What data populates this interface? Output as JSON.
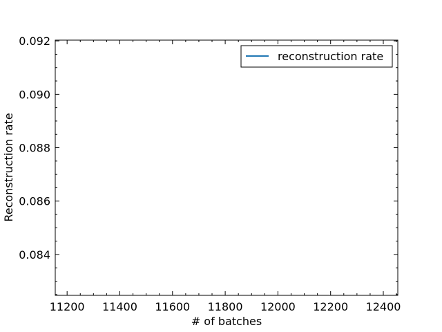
{
  "chart_data": {
    "type": "line",
    "title": "",
    "xlabel": "# of batches",
    "ylabel": "Reconstruction rate",
    "xlim": [
      11155,
      12455
    ],
    "ylim": [
      0.08247,
      0.09203
    ],
    "xticks": [
      11200,
      11400,
      11600,
      11800,
      12000,
      12200,
      12400
    ],
    "xtick_labels": [
      "11200",
      "11400",
      "11600",
      "11800",
      "12000",
      "12200",
      "12400"
    ],
    "yticks": [
      0.084,
      0.086,
      0.088,
      0.09,
      0.092
    ],
    "ytick_labels": [
      "0.084",
      "0.086",
      "0.088",
      "0.090",
      "0.092"
    ],
    "grid": false,
    "legend_position": "top-right",
    "series": [
      {
        "name": "reconstruction rate",
        "color": "#1f77b4",
        "x": [],
        "y": []
      }
    ]
  }
}
